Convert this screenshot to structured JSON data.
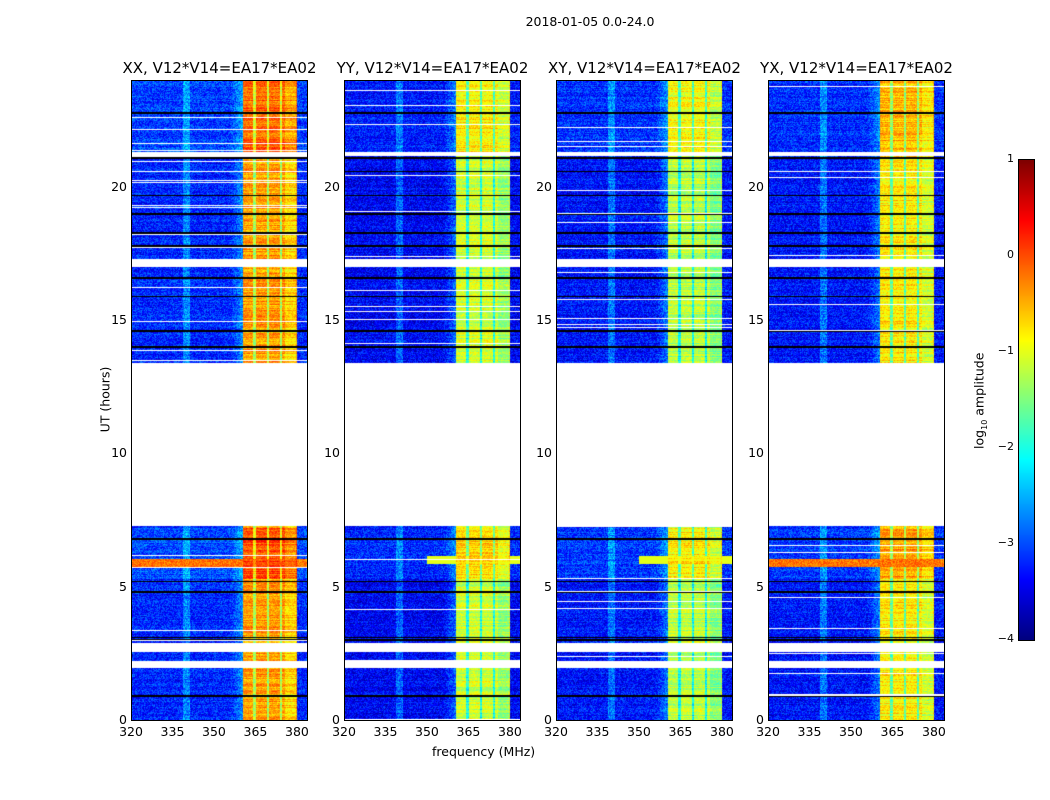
{
  "figure": {
    "suptitle": "2018-01-05 0.0-24.0",
    "xlabel": "frequency (MHz)",
    "ylabel": "UT (hours)"
  },
  "chart_data": [
    {
      "type": "heatmap",
      "title": "XX, V12*V14=EA17*EA02",
      "xlim": [
        320,
        384
      ],
      "ylim": [
        0,
        24
      ],
      "xticks": [
        "320",
        "335",
        "350",
        "365",
        "380"
      ],
      "yticks": [
        "0",
        "5",
        "10",
        "15",
        "20"
      ],
      "background_level": -3.2,
      "band_mhz": [
        360.5,
        380.5
      ],
      "band_level": -0.4,
      "rfi_event_hour": 5.9
    },
    {
      "type": "heatmap",
      "title": "YY, V12*V14=EA17*EA02",
      "xlim": [
        320,
        384
      ],
      "ylim": [
        0,
        24
      ],
      "xticks": [
        "320",
        "335",
        "350",
        "365",
        "380"
      ],
      "yticks": [
        "0",
        "5",
        "10",
        "15",
        "20"
      ],
      "background_level": -3.4,
      "band_mhz": [
        360.5,
        380.5
      ],
      "band_level": -1.1,
      "rfi_event_hour": 6.0
    },
    {
      "type": "heatmap",
      "title": "XY, V12*V14=EA17*EA02",
      "xlim": [
        320,
        384
      ],
      "ylim": [
        0,
        24
      ],
      "xticks": [
        "320",
        "335",
        "350",
        "365",
        "380"
      ],
      "yticks": [
        "0",
        "5",
        "10",
        "15",
        "20"
      ],
      "background_level": -3.3,
      "band_mhz": [
        360.5,
        380.5
      ],
      "band_level": -1.2,
      "rfi_event_hour": 6.0
    },
    {
      "type": "heatmap",
      "title": "YX, V12*V14=EA17*EA02",
      "xlim": [
        320,
        384
      ],
      "ylim": [
        0,
        24
      ],
      "xticks": [
        "320",
        "335",
        "350",
        "365",
        "380"
      ],
      "yticks": [
        "0",
        "5",
        "10",
        "15",
        "20"
      ],
      "background_level": -3.3,
      "band_mhz": [
        360.5,
        380.5
      ],
      "band_level": -0.8,
      "rfi_event_hour": 5.9
    }
  ],
  "shared": {
    "data_gaps_hours": [
      [
        1.95,
        2.2
      ],
      [
        2.55,
        2.9
      ],
      [
        7.3,
        13.4
      ],
      [
        17.0,
        17.3
      ],
      [
        21.2,
        21.35
      ]
    ],
    "flag_lines_hours": [
      0.9,
      2.05,
      3.0,
      3.1,
      4.8,
      5.2,
      6.8,
      14.0,
      14.6,
      15.9,
      16.6,
      17.8,
      18.3,
      19.0,
      19.7,
      20.6,
      21.1,
      22.8
    ],
    "colormap": "jet"
  },
  "colorbar": {
    "label": "log",
    "label_sub": "10",
    "label_rest": " amplitude",
    "range": [
      -4,
      1
    ],
    "ticks": [
      "1",
      "0",
      "−1",
      "−2",
      "−3",
      "−4"
    ],
    "tick_values": [
      1,
      0,
      -1,
      -2,
      -3,
      -4
    ]
  }
}
